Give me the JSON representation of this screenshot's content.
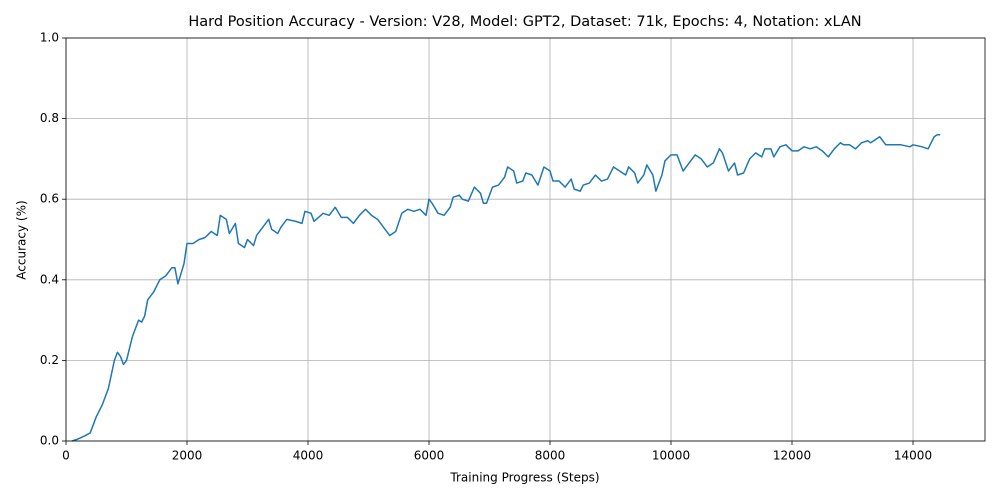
{
  "chart_data": {
    "type": "line",
    "title": "Hard Position Accuracy - Version: V28, Model: GPT2, Dataset: 71k, Epochs: 4, Notation: xLAN",
    "xlabel": "Training Progress (Steps)",
    "ylabel": "Accuracy (%)",
    "color": "#1f77b4",
    "grid": true,
    "xlim": [
      0,
      15190
    ],
    "ylim": [
      0,
      1
    ],
    "xticks": [
      0,
      2000,
      4000,
      6000,
      8000,
      10000,
      12000,
      14000
    ],
    "yticks": [
      {
        "value": 0,
        "label": "0.0"
      },
      0.2,
      0.4,
      0.6,
      0.8,
      {
        "value": 1,
        "label": "1.0"
      }
    ],
    "x": [
      100,
      200,
      300,
      400,
      500,
      600,
      700,
      800,
      850,
      900,
      950,
      1000,
      1100,
      1200,
      1250,
      1300,
      1350,
      1450,
      1550,
      1650,
      1750,
      1800,
      1850,
      1950,
      2000,
      2100,
      2200,
      2300,
      2400,
      2500,
      2550,
      2650,
      2700,
      2800,
      2850,
      2950,
      3000,
      3100,
      3150,
      3250,
      3350,
      3400,
      3500,
      3550,
      3650,
      3800,
      3900,
      3950,
      4050,
      4100,
      4250,
      4350,
      4450,
      4550,
      4650,
      4750,
      4850,
      4950,
      5050,
      5150,
      5250,
      5350,
      5450,
      5550,
      5650,
      5750,
      5850,
      5950,
      6000,
      6050,
      6150,
      6250,
      6350,
      6400,
      6500,
      6550,
      6650,
      6750,
      6850,
      6900,
      6950,
      7050,
      7150,
      7250,
      7300,
      7400,
      7450,
      7550,
      7600,
      7700,
      7800,
      7900,
      8000,
      8050,
      8150,
      8250,
      8350,
      8400,
      8500,
      8550,
      8650,
      8750,
      8850,
      8950,
      9050,
      9150,
      9250,
      9300,
      9400,
      9450,
      9550,
      9600,
      9700,
      9750,
      9850,
      9900,
      10000,
      10100,
      10200,
      10300,
      10400,
      10500,
      10600,
      10700,
      10800,
      10850,
      10950,
      11050,
      11100,
      11200,
      11300,
      11400,
      11500,
      11550,
      11650,
      11700,
      11800,
      11900,
      12000,
      12100,
      12200,
      12300,
      12400,
      12500,
      12600,
      12700,
      12800,
      12850,
      12950,
      13050,
      13150,
      13250,
      13300,
      13400,
      13450,
      13550,
      13650,
      13800,
      13950,
      14000,
      14150,
      14250,
      14350,
      14400,
      14450
    ],
    "values": [
      0,
      0.005,
      0.012,
      0.02,
      0.06,
      0.09,
      0.13,
      0.2,
      0.22,
      0.21,
      0.19,
      0.2,
      0.26,
      0.3,
      0.295,
      0.31,
      0.35,
      0.37,
      0.4,
      0.41,
      0.43,
      0.43,
      0.39,
      0.44,
      0.49,
      0.49,
      0.5,
      0.505,
      0.52,
      0.51,
      0.56,
      0.55,
      0.515,
      0.54,
      0.49,
      0.48,
      0.5,
      0.485,
      0.51,
      0.53,
      0.55,
      0.525,
      0.515,
      0.53,
      0.55,
      0.545,
      0.54,
      0.57,
      0.565,
      0.545,
      0.565,
      0.56,
      0.58,
      0.555,
      0.555,
      0.54,
      0.56,
      0.575,
      0.56,
      0.55,
      0.53,
      0.51,
      0.52,
      0.565,
      0.575,
      0.57,
      0.575,
      0.56,
      0.6,
      0.59,
      0.565,
      0.56,
      0.58,
      0.605,
      0.61,
      0.6,
      0.595,
      0.63,
      0.615,
      0.59,
      0.59,
      0.63,
      0.635,
      0.655,
      0.68,
      0.67,
      0.64,
      0.645,
      0.665,
      0.66,
      0.635,
      0.68,
      0.67,
      0.645,
      0.645,
      0.63,
      0.65,
      0.625,
      0.62,
      0.635,
      0.64,
      0.66,
      0.645,
      0.65,
      0.68,
      0.67,
      0.66,
      0.68,
      0.665,
      0.64,
      0.66,
      0.685,
      0.66,
      0.62,
      0.66,
      0.695,
      0.71,
      0.71,
      0.67,
      0.69,
      0.71,
      0.7,
      0.68,
      0.69,
      0.725,
      0.715,
      0.67,
      0.69,
      0.66,
      0.665,
      0.7,
      0.715,
      0.705,
      0.725,
      0.725,
      0.705,
      0.73,
      0.735,
      0.72,
      0.72,
      0.73,
      0.725,
      0.73,
      0.72,
      0.705,
      0.725,
      0.74,
      0.735,
      0.735,
      0.725,
      0.74,
      0.745,
      0.74,
      0.75,
      0.755,
      0.735,
      0.735,
      0.735,
      0.73,
      0.735,
      0.73,
      0.725,
      0.755,
      0.76,
      0.76
    ]
  }
}
